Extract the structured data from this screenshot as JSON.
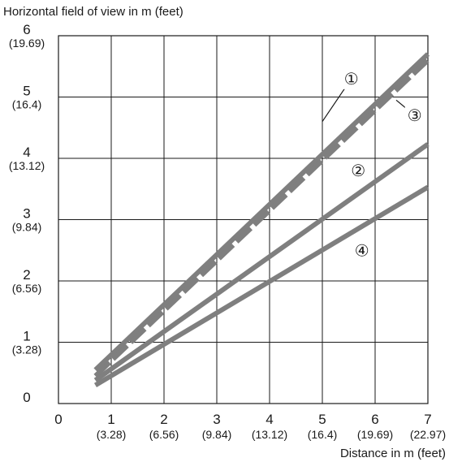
{
  "chart_data": {
    "type": "line",
    "ylabel": "Horizontal field of view in m (feet)",
    "xlabel": "Distance in m (feet)",
    "xlim": [
      0,
      7
    ],
    "ylim": [
      0,
      6
    ],
    "grid": true,
    "x_ticks": [
      {
        "value": 0,
        "label": "0",
        "sub": ""
      },
      {
        "value": 1,
        "label": "1",
        "sub": "(3.28)"
      },
      {
        "value": 2,
        "label": "2",
        "sub": "(6.56)"
      },
      {
        "value": 3,
        "label": "3",
        "sub": "(9.84)"
      },
      {
        "value": 4,
        "label": "4",
        "sub": "(13.12)"
      },
      {
        "value": 5,
        "label": "5",
        "sub": "(16.4)"
      },
      {
        "value": 6,
        "label": "6",
        "sub": "(19.69)"
      },
      {
        "value": 7,
        "label": "7",
        "sub": "(22.97)"
      }
    ],
    "y_ticks": [
      {
        "value": 0,
        "label": "0",
        "sub": ""
      },
      {
        "value": 1,
        "label": "1",
        "sub": "(3.28)"
      },
      {
        "value": 2,
        "label": "2",
        "sub": "(6.56)"
      },
      {
        "value": 3,
        "label": "3",
        "sub": "(9.84)"
      },
      {
        "value": 4,
        "label": "4",
        "sub": "(13.12)"
      },
      {
        "value": 5,
        "label": "5",
        "sub": "(16.4)"
      },
      {
        "value": 6,
        "label": "6",
        "sub": "(19.69)"
      }
    ],
    "series": [
      {
        "marker": "①",
        "style": "solid",
        "x": [
          0.7,
          7.0
        ],
        "y": [
          0.55,
          5.7
        ],
        "label_at": [
          5.55,
          5.3
        ],
        "leader_to": [
          5.0,
          4.6
        ]
      },
      {
        "marker": "②",
        "style": "solid",
        "x": [
          0.7,
          7.0
        ],
        "y": [
          0.38,
          4.23
        ],
        "label_at": [
          5.68,
          3.8
        ],
        "leader_to": null
      },
      {
        "marker": "③",
        "style": "dashed",
        "x": [
          0.7,
          7.0
        ],
        "y": [
          0.45,
          5.6
        ],
        "label_at": [
          6.75,
          4.7
        ],
        "leader_to": [
          6.4,
          4.95
        ]
      },
      {
        "marker": "④",
        "style": "solid",
        "x": [
          0.7,
          7.0
        ],
        "y": [
          0.3,
          3.53
        ],
        "label_at": [
          5.75,
          2.5
        ],
        "leader_to": null
      }
    ],
    "line_color": "#7f7f7f",
    "grid_color": "#1a1a1a"
  }
}
